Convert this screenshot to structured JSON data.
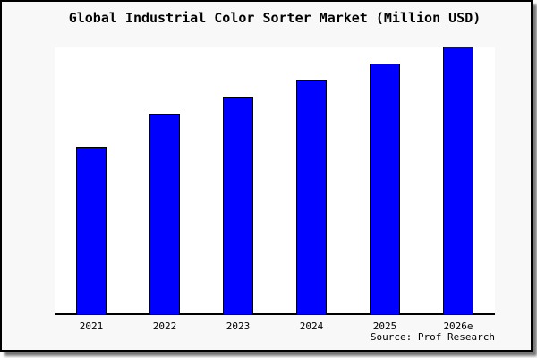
{
  "chart_data": {
    "type": "bar",
    "title": "Global Industrial Color Sorter Market (Million USD)",
    "categories": [
      "2021",
      "2022",
      "2023",
      "2024",
      "2025",
      "2026e"
    ],
    "values": [
      62.7,
      75.1,
      81.3,
      87.8,
      93.7,
      100
    ],
    "value_scale": "relative index, 2026e = 100 (no y-axis tick labels shown in chart)",
    "xlabel": "",
    "ylabel": "",
    "ylim": [
      0,
      105
    ],
    "grid": false,
    "legend": false,
    "bar_color": "#0000ff",
    "bar_border_color": "#000000",
    "source": "Source: Prof Research"
  },
  "colors": {
    "page_background": "#f8f8f8",
    "plot_background": "#ffffff",
    "axis": "#000000",
    "frame_border": "#000000",
    "shadow": "#777777",
    "bar": "#0000ff",
    "text": "#000000"
  }
}
